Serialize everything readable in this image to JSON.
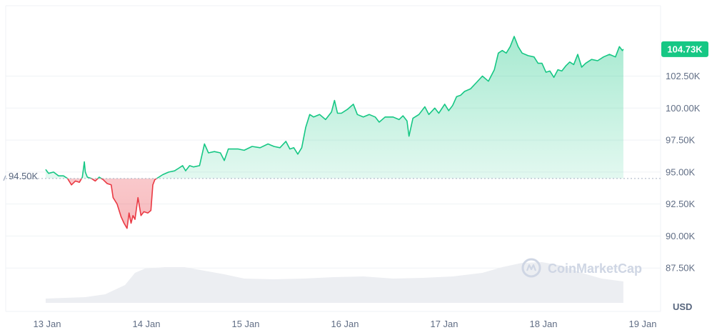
{
  "watermark": {
    "brand": "CoinMarketCap",
    "icon": "coinmarketcap-logo-icon"
  },
  "colors": {
    "up": "#16c784",
    "down": "#ea3943",
    "grid": "#eff2f5",
    "reference": "#a6b0c3",
    "volume": "#eceef2",
    "axis_text": "#616e85"
  },
  "chart_data": {
    "type": "area",
    "unit_label": "USD",
    "current_price_label": "104.73K",
    "reference_label": "94.50K",
    "reference_value": 94.5,
    "y_ticks": [
      "87.50K",
      "90.00K",
      "92.50K",
      "95.00K",
      "97.50K",
      "100.00K",
      "102.50K"
    ],
    "y_range": [
      85.0,
      108.0
    ],
    "x_ticks": [
      "13 Jan",
      "14 Jan",
      "15 Jan",
      "16 Jan",
      "17 Jan",
      "18 Jan",
      "19 Jan"
    ],
    "series": [
      {
        "points": [
          [
            0.0,
            95.2
          ],
          [
            0.03,
            94.9
          ],
          [
            0.08,
            95.0
          ],
          [
            0.13,
            94.7
          ],
          [
            0.18,
            94.7
          ],
          [
            0.22,
            94.5
          ],
          [
            0.26,
            94.0
          ],
          [
            0.3,
            94.3
          ],
          [
            0.34,
            94.2
          ],
          [
            0.37,
            94.6
          ],
          [
            0.39,
            95.8
          ],
          [
            0.4,
            95.0
          ],
          [
            0.42,
            94.6
          ],
          [
            0.46,
            94.5
          ],
          [
            0.5,
            94.3
          ],
          [
            0.54,
            94.6
          ],
          [
            0.58,
            94.4
          ],
          [
            0.62,
            94.1
          ],
          [
            0.66,
            94.0
          ],
          [
            0.68,
            93.0
          ],
          [
            0.72,
            92.5
          ],
          [
            0.76,
            91.5
          ],
          [
            0.79,
            91.0
          ],
          [
            0.82,
            90.6
          ],
          [
            0.84,
            91.8
          ],
          [
            0.86,
            91.0
          ],
          [
            0.88,
            91.6
          ],
          [
            0.9,
            91.3
          ],
          [
            0.93,
            93.0
          ],
          [
            0.96,
            91.6
          ],
          [
            0.99,
            91.9
          ],
          [
            1.03,
            91.8
          ],
          [
            1.06,
            92.0
          ],
          [
            1.08,
            94.0
          ],
          [
            1.1,
            94.4
          ],
          [
            1.14,
            94.6
          ],
          [
            1.18,
            94.8
          ],
          [
            1.24,
            95.0
          ],
          [
            1.3,
            95.1
          ],
          [
            1.34,
            95.3
          ],
          [
            1.38,
            95.5
          ],
          [
            1.41,
            95.1
          ],
          [
            1.45,
            95.5
          ],
          [
            1.49,
            95.4
          ],
          [
            1.55,
            95.5
          ],
          [
            1.6,
            97.2
          ],
          [
            1.64,
            96.5
          ],
          [
            1.7,
            96.6
          ],
          [
            1.76,
            96.5
          ],
          [
            1.8,
            95.9
          ],
          [
            1.84,
            96.8
          ],
          [
            1.88,
            96.8
          ],
          [
            1.94,
            96.8
          ],
          [
            2.0,
            96.7
          ],
          [
            2.08,
            97.0
          ],
          [
            2.16,
            96.9
          ],
          [
            2.24,
            97.2
          ],
          [
            2.3,
            97.0
          ],
          [
            2.36,
            96.9
          ],
          [
            2.42,
            97.4
          ],
          [
            2.46,
            96.8
          ],
          [
            2.5,
            96.9
          ],
          [
            2.54,
            96.4
          ],
          [
            2.58,
            96.9
          ],
          [
            2.62,
            98.5
          ],
          [
            2.66,
            99.5
          ],
          [
            2.7,
            99.3
          ],
          [
            2.76,
            99.5
          ],
          [
            2.82,
            99.1
          ],
          [
            2.88,
            99.7
          ],
          [
            2.91,
            100.6
          ],
          [
            2.94,
            99.6
          ],
          [
            2.98,
            99.6
          ],
          [
            3.04,
            99.9
          ],
          [
            3.1,
            100.3
          ],
          [
            3.14,
            99.5
          ],
          [
            3.2,
            99.3
          ],
          [
            3.26,
            99.5
          ],
          [
            3.32,
            99.3
          ],
          [
            3.36,
            98.9
          ],
          [
            3.42,
            99.3
          ],
          [
            3.5,
            99.3
          ],
          [
            3.56,
            99.1
          ],
          [
            3.6,
            99.4
          ],
          [
            3.64,
            99.0
          ],
          [
            3.66,
            97.8
          ],
          [
            3.7,
            99.2
          ],
          [
            3.76,
            99.5
          ],
          [
            3.82,
            100.1
          ],
          [
            3.86,
            99.5
          ],
          [
            3.92,
            100.0
          ],
          [
            3.96,
            99.6
          ],
          [
            4.02,
            100.3
          ],
          [
            4.06,
            99.8
          ],
          [
            4.1,
            100.2
          ],
          [
            4.14,
            100.9
          ],
          [
            4.18,
            101.0
          ],
          [
            4.22,
            101.3
          ],
          [
            4.28,
            101.5
          ],
          [
            4.34,
            102.0
          ],
          [
            4.4,
            102.5
          ],
          [
            4.46,
            102.1
          ],
          [
            4.52,
            103.0
          ],
          [
            4.56,
            104.3
          ],
          [
            4.6,
            104.5
          ],
          [
            4.64,
            104.3
          ],
          [
            4.68,
            104.8
          ],
          [
            4.72,
            105.6
          ],
          [
            4.76,
            104.8
          ],
          [
            4.8,
            104.3
          ],
          [
            4.86,
            104.1
          ],
          [
            4.92,
            104.0
          ],
          [
            4.96,
            103.5
          ],
          [
            5.0,
            103.5
          ],
          [
            5.04,
            102.8
          ],
          [
            5.08,
            102.9
          ],
          [
            5.12,
            102.4
          ],
          [
            5.16,
            103.0
          ],
          [
            5.2,
            102.9
          ],
          [
            5.24,
            103.3
          ],
          [
            5.28,
            103.6
          ],
          [
            5.32,
            103.4
          ],
          [
            5.36,
            104.2
          ],
          [
            5.4,
            103.2
          ],
          [
            5.44,
            103.5
          ],
          [
            5.5,
            103.8
          ],
          [
            5.56,
            103.7
          ],
          [
            5.62,
            104.0
          ],
          [
            5.68,
            104.2
          ],
          [
            5.74,
            104.0
          ],
          [
            5.78,
            104.8
          ],
          [
            5.81,
            104.5
          ],
          [
            5.82,
            104.6
          ]
        ]
      },
      {
        "volume": [
          [
            0.0,
            0.06
          ],
          [
            0.4,
            0.08
          ],
          [
            0.6,
            0.12
          ],
          [
            0.8,
            0.25
          ],
          [
            0.9,
            0.42
          ],
          [
            1.0,
            0.48
          ],
          [
            1.2,
            0.5
          ],
          [
            1.4,
            0.5
          ],
          [
            1.6,
            0.45
          ],
          [
            1.8,
            0.4
          ],
          [
            2.0,
            0.34
          ],
          [
            2.3,
            0.33
          ],
          [
            2.6,
            0.34
          ],
          [
            2.9,
            0.36
          ],
          [
            3.2,
            0.37
          ],
          [
            3.5,
            0.34
          ],
          [
            3.8,
            0.35
          ],
          [
            4.1,
            0.37
          ],
          [
            4.4,
            0.42
          ],
          [
            4.6,
            0.5
          ],
          [
            4.8,
            0.56
          ],
          [
            5.0,
            0.57
          ],
          [
            5.2,
            0.52
          ],
          [
            5.4,
            0.42
          ],
          [
            5.6,
            0.34
          ],
          [
            5.82,
            0.3
          ]
        ]
      }
    ]
  }
}
